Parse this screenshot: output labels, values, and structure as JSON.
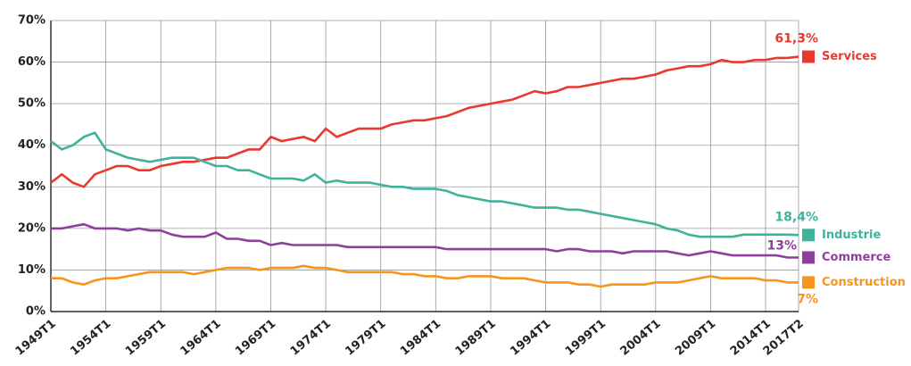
{
  "chart_data": {
    "type": "line",
    "categories": [
      "1949T1",
      null,
      null,
      null,
      null,
      "1954T1",
      null,
      null,
      null,
      null,
      "1959T1",
      null,
      null,
      null,
      null,
      "1964T1",
      null,
      null,
      null,
      null,
      "1969T1",
      null,
      null,
      null,
      null,
      "1974T1",
      null,
      null,
      null,
      null,
      "1979T1",
      null,
      null,
      null,
      null,
      "1984T1",
      null,
      null,
      null,
      null,
      "1989T1",
      null,
      null,
      null,
      null,
      "1994T1",
      null,
      null,
      null,
      null,
      "1999T1",
      null,
      null,
      null,
      null,
      "2004T1",
      null,
      null,
      null,
      null,
      "2009T1",
      null,
      null,
      null,
      null,
      "2014T1",
      null,
      null,
      "2017T2"
    ],
    "series": [
      {
        "name": "Services",
        "color": "#e8392f",
        "values": [
          31,
          33,
          31,
          30,
          33,
          34,
          35,
          35,
          34,
          34,
          35,
          35.5,
          36,
          36,
          36.5,
          37,
          37,
          38,
          39,
          39,
          42,
          41,
          41.5,
          42,
          41,
          44,
          42,
          43,
          44,
          44,
          44,
          45,
          45.5,
          46,
          46,
          46.5,
          47,
          48,
          49,
          49.5,
          50,
          50.5,
          51,
          52,
          53,
          52.5,
          53,
          54,
          54,
          54.5,
          55,
          55.5,
          56,
          56,
          56.5,
          57,
          58,
          58.5,
          59,
          59,
          59.5,
          60.5,
          60,
          60,
          60.5,
          60.5,
          61,
          61,
          61.3
        ],
        "value_labels": [
          null,
          null,
          null,
          null,
          null,
          null,
          null,
          null,
          null,
          null,
          null,
          null,
          null,
          null,
          null,
          null,
          null,
          null,
          null,
          null,
          null,
          null,
          null,
          null,
          null,
          null,
          null,
          null,
          null,
          null,
          null,
          null,
          null,
          null,
          null,
          null,
          null,
          null,
          null,
          null,
          null,
          null,
          null,
          null,
          null,
          null,
          null,
          null,
          null,
          null,
          null,
          null,
          null,
          null,
          null,
          null,
          null,
          null,
          null,
          null,
          null,
          null,
          null,
          null,
          null,
          null,
          null,
          null,
          "61,3%"
        ]
      },
      {
        "name": "Industrie",
        "color": "#3fb39a",
        "values": [
          41,
          39,
          40,
          42,
          43,
          39,
          38,
          37,
          36.5,
          36,
          36.5,
          37,
          37,
          37,
          36,
          35,
          35,
          34,
          34,
          33,
          32,
          32,
          32,
          31.5,
          33,
          31,
          31.5,
          31,
          31,
          31,
          30.5,
          30,
          30,
          29.5,
          29.5,
          29.5,
          29,
          28,
          27.5,
          27,
          26.5,
          26.5,
          26,
          25.5,
          25,
          25,
          25,
          24.5,
          24.5,
          24,
          23.5,
          23,
          22.5,
          22,
          21.5,
          21,
          20,
          19.5,
          18.5,
          18,
          18,
          18,
          18,
          18.5,
          18.5,
          18.5,
          18.5,
          18.5,
          18.4
        ],
        "value_labels": [
          null,
          null,
          null,
          null,
          null,
          null,
          null,
          null,
          null,
          null,
          null,
          null,
          null,
          null,
          null,
          null,
          null,
          null,
          null,
          null,
          null,
          null,
          null,
          null,
          null,
          null,
          null,
          null,
          null,
          null,
          null,
          null,
          null,
          null,
          null,
          null,
          null,
          null,
          null,
          null,
          null,
          null,
          null,
          null,
          null,
          null,
          null,
          null,
          null,
          null,
          null,
          null,
          null,
          null,
          null,
          null,
          null,
          null,
          null,
          null,
          null,
          null,
          null,
          null,
          null,
          null,
          null,
          null,
          "18,4%"
        ]
      },
      {
        "name": "Commerce",
        "color": "#8e3f9b",
        "values": [
          20,
          20,
          20.5,
          21,
          20,
          20,
          20,
          19.5,
          20,
          19.5,
          19.5,
          18.5,
          18,
          18,
          18,
          19,
          17.5,
          17.5,
          17,
          17,
          16,
          16.5,
          16,
          16,
          16,
          16,
          16,
          15.5,
          15.5,
          15.5,
          15.5,
          15.5,
          15.5,
          15.5,
          15.5,
          15.5,
          15,
          15,
          15,
          15,
          15,
          15,
          15,
          15,
          15,
          15,
          14.5,
          15,
          15,
          14.5,
          14.5,
          14.5,
          14,
          14.5,
          14.5,
          14.5,
          14.5,
          14,
          13.5,
          14,
          14.5,
          14,
          13.5,
          13.5,
          13.5,
          13.5,
          13.5,
          13,
          13
        ],
        "value_labels": [
          null,
          null,
          null,
          null,
          null,
          null,
          null,
          null,
          null,
          null,
          null,
          null,
          null,
          null,
          null,
          null,
          null,
          null,
          null,
          null,
          null,
          null,
          null,
          null,
          null,
          null,
          null,
          null,
          null,
          null,
          null,
          null,
          null,
          null,
          null,
          null,
          null,
          null,
          null,
          null,
          null,
          null,
          null,
          null,
          null,
          null,
          null,
          null,
          null,
          null,
          null,
          null,
          null,
          null,
          null,
          null,
          null,
          null,
          null,
          null,
          null,
          null,
          null,
          null,
          null,
          null,
          null,
          null,
          "13%"
        ]
      },
      {
        "name": "Construction",
        "color": "#f7941d",
        "values": [
          8,
          8,
          7,
          6.5,
          7.5,
          8,
          8,
          8.5,
          9,
          9.5,
          9.5,
          9.5,
          9.5,
          9,
          9.5,
          10,
          10.5,
          10.5,
          10.5,
          10,
          10.5,
          10.5,
          10.5,
          11,
          10.5,
          10.5,
          10,
          9.5,
          9.5,
          9.5,
          9.5,
          9.5,
          9,
          9,
          8.5,
          8.5,
          8,
          8,
          8.5,
          8.5,
          8.5,
          8,
          8,
          8,
          7.5,
          7,
          7,
          7,
          6.5,
          6.5,
          6,
          6.5,
          6.5,
          6.5,
          6.5,
          7,
          7,
          7,
          7.5,
          8,
          8.5,
          8,
          8,
          8,
          8,
          7.5,
          7.5,
          7,
          7
        ],
        "value_labels": [
          null,
          null,
          null,
          null,
          null,
          null,
          null,
          null,
          null,
          null,
          null,
          null,
          null,
          null,
          null,
          null,
          null,
          null,
          null,
          null,
          null,
          null,
          null,
          null,
          null,
          null,
          null,
          null,
          null,
          null,
          null,
          null,
          null,
          null,
          null,
          null,
          null,
          null,
          null,
          null,
          null,
          null,
          null,
          null,
          null,
          null,
          null,
          null,
          null,
          null,
          null,
          null,
          null,
          null,
          null,
          null,
          null,
          null,
          null,
          null,
          null,
          null,
          null,
          null,
          null,
          null,
          null,
          null,
          "7%"
        ]
      }
    ],
    "ylim": [
      0,
      70
    ],
    "yticks": [
      {
        "value": 0,
        "label": "0%"
      },
      {
        "value": 10,
        "label": "10%"
      },
      {
        "value": 20,
        "label": "20%"
      },
      {
        "value": 30,
        "label": "30%"
      },
      {
        "value": 40,
        "label": "40%"
      },
      {
        "value": 50,
        "label": "50%"
      },
      {
        "value": 60,
        "label": "60%"
      },
      {
        "value": 70,
        "label": "70%"
      }
    ],
    "grid": true
  }
}
